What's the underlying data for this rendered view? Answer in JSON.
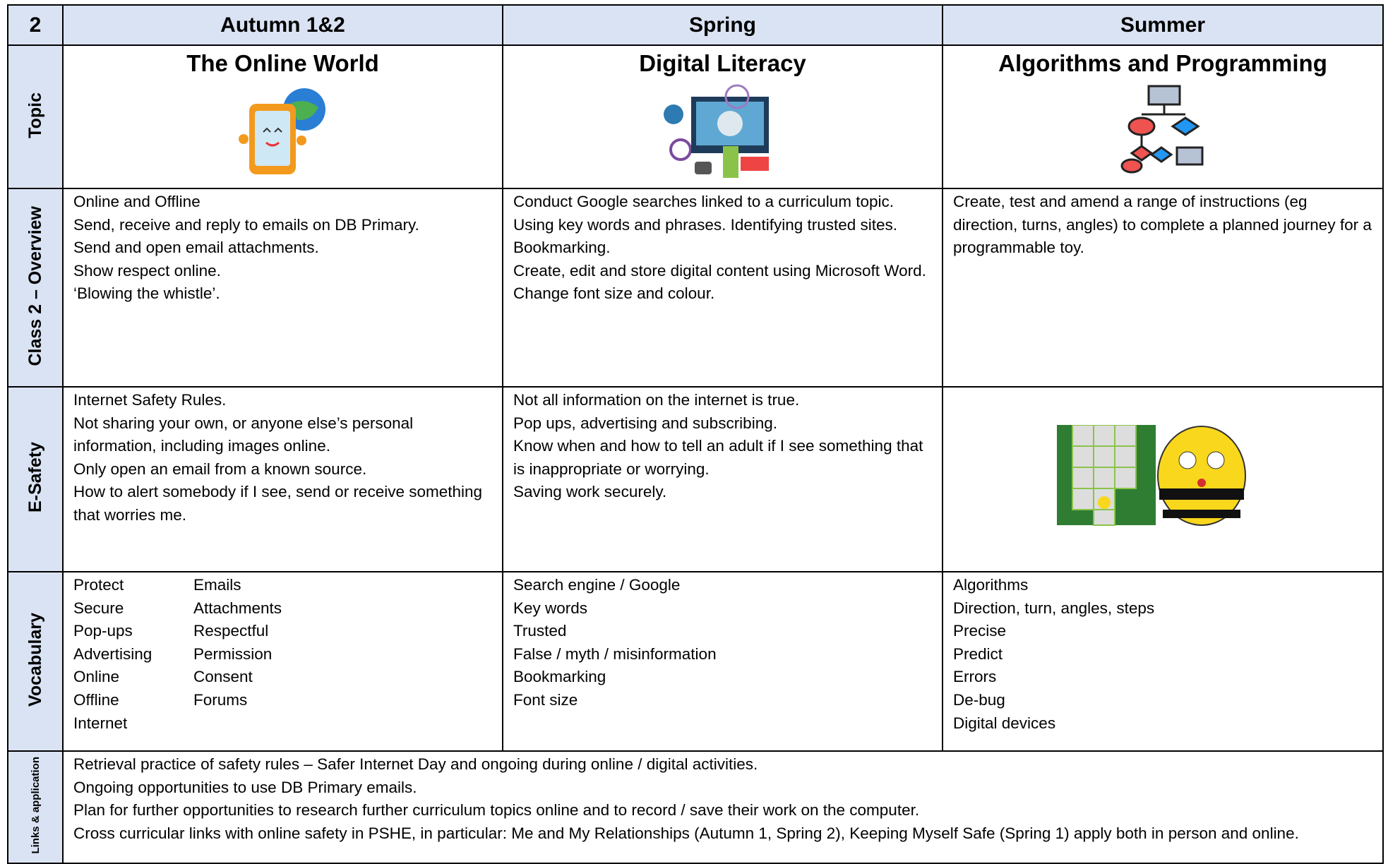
{
  "header": {
    "corner": "2",
    "columns": [
      "Autumn 1&2",
      "Spring",
      "Summer"
    ]
  },
  "rows": [
    {
      "label": "Topic",
      "cells": [
        {
          "title": "The Online World"
        },
        {
          "title": "Digital Literacy"
        },
        {
          "title": "Algorithms and Programming"
        }
      ]
    },
    {
      "label": "Class 2 – Overview",
      "cells": [
        {
          "lines": [
            "Online and Offline",
            "Send, receive and reply to emails on DB Primary.",
            "Send and open email attachments.",
            "Show respect online.",
            "‘Blowing the whistle’."
          ]
        },
        {
          "lines": [
            "Conduct Google searches linked to a curriculum topic.",
            "Using key words and phrases.  Identifying trusted sites. Bookmarking.",
            "Create, edit and store digital content using Microsoft Word.",
            "Change font size and colour."
          ]
        },
        {
          "lines": [
            "Create, test and amend a range of instructions (eg direction, turns, angles) to complete a planned journey for a programmable toy."
          ]
        }
      ]
    },
    {
      "label": "E-Safety",
      "cells": [
        {
          "lines": [
            "Internet Safety Rules.",
            "Not sharing your own, or anyone else’s personal information, including images online.",
            "Only open an email from a known source.",
            "How to alert somebody if I see, send or receive something that worries me."
          ]
        },
        {
          "lines": [
            "Not all information on the internet is true.",
            "Pop ups, advertising and subscribing.",
            "Know when and how to tell an adult if I see something that is inappropriate or worrying.",
            "Saving work securely."
          ]
        }
      ]
    },
    {
      "label": "Vocabulary",
      "cells": [
        {
          "columns": [
            [
              "Protect",
              "Secure",
              "Pop-ups",
              "Advertising",
              "Online",
              "Offline",
              "Internet"
            ],
            [
              "Emails",
              "Attachments",
              "Respectful",
              "Permission",
              "Consent",
              "Forums"
            ]
          ]
        },
        {
          "lines": [
            "Search engine / Google",
            "Key words",
            "Trusted",
            "False / myth / misinformation",
            "Bookmarking",
            "Font size"
          ]
        },
        {
          "lines": [
            "Algorithms",
            "Direction, turn, angles, steps",
            "Precise",
            "Predict",
            "Errors",
            "De-bug",
            "Digital devices"
          ]
        }
      ]
    },
    {
      "label": "Links & application",
      "cells": [
        {
          "lines": [
            "Retrieval practice of safety rules – Safer Internet Day and ongoing during online / digital activities.",
            "Ongoing opportunities to use DB Primary emails.",
            "Plan for further opportunities to research further curriculum topics online and to record / save their work on the computer.",
            "Cross curricular links with online safety in PSHE, in particular: Me and My Relationships (Autumn 1, Spring 2), Keeping Myself Safe (Spring 1) apply both in person and online."
          ]
        }
      ]
    }
  ]
}
